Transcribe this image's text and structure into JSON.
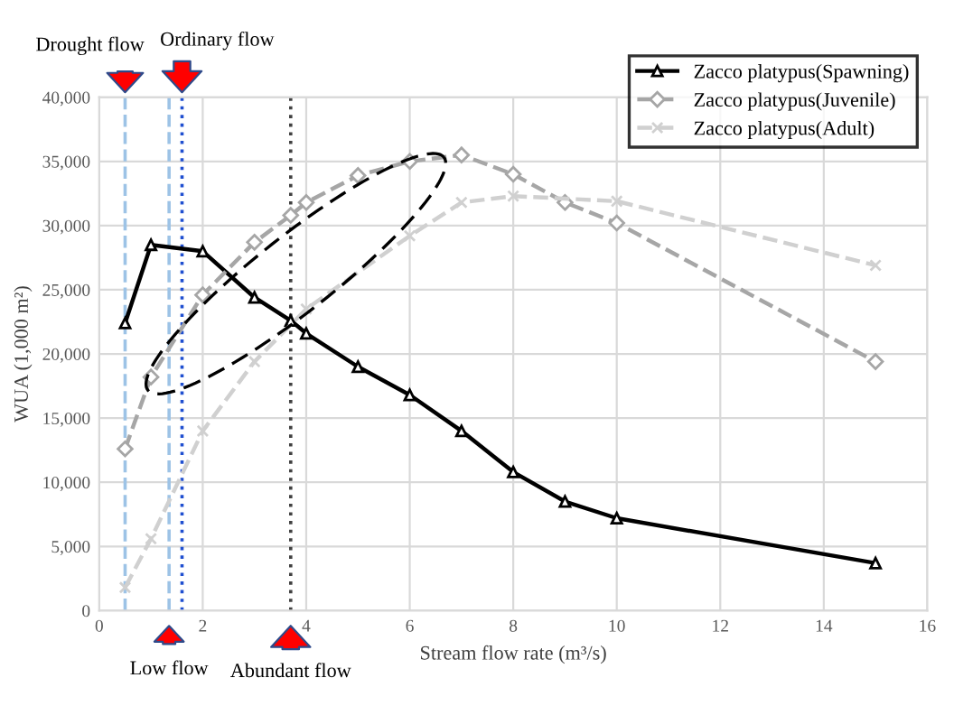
{
  "chart_data": {
    "type": "line",
    "xlabel": "Stream flow rate (m³/s)",
    "ylabel": "WUA (1,000 m²)",
    "series": [
      {
        "name": "Zacco platypus(Spawning)",
        "color": "#000000",
        "marker": "triangle",
        "line_style": "solid",
        "x": [
          0.5,
          1,
          2,
          3,
          3.7,
          4,
          5,
          6,
          7,
          8,
          9,
          10,
          15
        ],
        "values": [
          22400,
          28500,
          28000,
          24400,
          22600,
          21600,
          19000,
          16800,
          14000,
          10800,
          8500,
          7200,
          3700
        ]
      },
      {
        "name": "Zacco platypus(Juvenile)",
        "color": "#a6a6a6",
        "marker": "diamond",
        "line_style": "dashed",
        "x": [
          0.5,
          1,
          2,
          3,
          3.7,
          4,
          5,
          6,
          7,
          8,
          9,
          10,
          15
        ],
        "values": [
          12600,
          18200,
          24600,
          28700,
          30800,
          31800,
          33900,
          35000,
          35500,
          34000,
          31800,
          30200,
          19400
        ]
      },
      {
        "name": "Zacco platypus(Adult)",
        "color": "#d0d0d0",
        "marker": "cross",
        "line_style": "dashed",
        "x": [
          0.5,
          1,
          2,
          3,
          4,
          6,
          7,
          8,
          10,
          15
        ],
        "values": [
          1800,
          5600,
          14000,
          19400,
          23500,
          29200,
          31800,
          32300,
          31900,
          26900
        ]
      }
    ],
    "ref_lines": [
      {
        "axis": "x",
        "value": 0.5,
        "label": "Drought flow",
        "color": "#9dc3e6",
        "line_style": "dashed"
      },
      {
        "axis": "x",
        "value": 1.35,
        "label": "Low flow",
        "color": "#9dc3e6",
        "line_style": "dashed"
      },
      {
        "axis": "x",
        "value": 1.6,
        "label": "Ordinary flow",
        "color": "#1f4fd0",
        "line_style": "dotted"
      },
      {
        "axis": "x",
        "value": 3.7,
        "label": "Abundant flow",
        "color": "#404040",
        "line_style": "dotted"
      }
    ],
    "xlim": [
      0,
      16
    ],
    "xticks": [
      0,
      2,
      4,
      6,
      8,
      10,
      12,
      14,
      16
    ],
    "ylim": [
      0,
      40000
    ],
    "yticks": [
      0,
      {
        "value": 5000,
        "label": "5,000"
      },
      {
        "value": 10000,
        "label": "10,000"
      },
      {
        "value": 15000,
        "label": "15,000"
      },
      {
        "value": 20000,
        "label": "20,000"
      },
      {
        "value": 25000,
        "label": "25,000"
      },
      {
        "value": 30000,
        "label": "30,000"
      },
      {
        "value": 35000,
        "label": "35,000"
      },
      {
        "value": 40000,
        "label": "40,000"
      }
    ],
    "grid": true,
    "legend": "top right"
  }
}
